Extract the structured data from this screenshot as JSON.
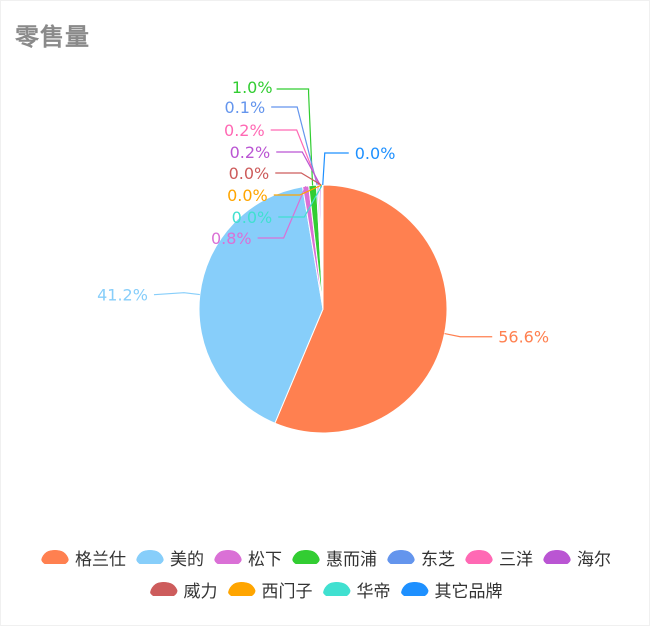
{
  "header": {
    "title": "零售量"
  },
  "chart_data": {
    "type": "pie",
    "title": "零售量",
    "series": [
      {
        "name": "格兰仕",
        "value": 56.6,
        "label": "56.6%",
        "color": "#ff8050"
      },
      {
        "name": "美的",
        "value": 41.2,
        "label": "41.2%",
        "color": "#87cefa"
      },
      {
        "name": "松下",
        "value": 0.8,
        "label": "0.8%",
        "color": "#da70d6"
      },
      {
        "name": "惠而浦",
        "value": 1.0,
        "label": "1.0%",
        "color": "#32cd32"
      },
      {
        "name": "东芝",
        "value": 0.1,
        "label": "0.1%",
        "color": "#6495ed"
      },
      {
        "name": "三洋",
        "value": 0.2,
        "label": "0.2%",
        "color": "#ff69b4"
      },
      {
        "name": "海尔",
        "value": 0.2,
        "label": "0.2%",
        "color": "#ba55d3"
      },
      {
        "name": "威力",
        "value": 0.0,
        "label": "0.0%",
        "color": "#cd5c5c"
      },
      {
        "name": "西门子",
        "value": 0.0,
        "label": "0.0%",
        "color": "#ffa500"
      },
      {
        "name": "华帝",
        "value": 0.0,
        "label": "0.0%",
        "color": "#40e0d0"
      },
      {
        "name": "其它品牌",
        "value": 0.0,
        "label": "0.0%",
        "color": "#1e90ff"
      }
    ],
    "legend_position": "bottom"
  }
}
